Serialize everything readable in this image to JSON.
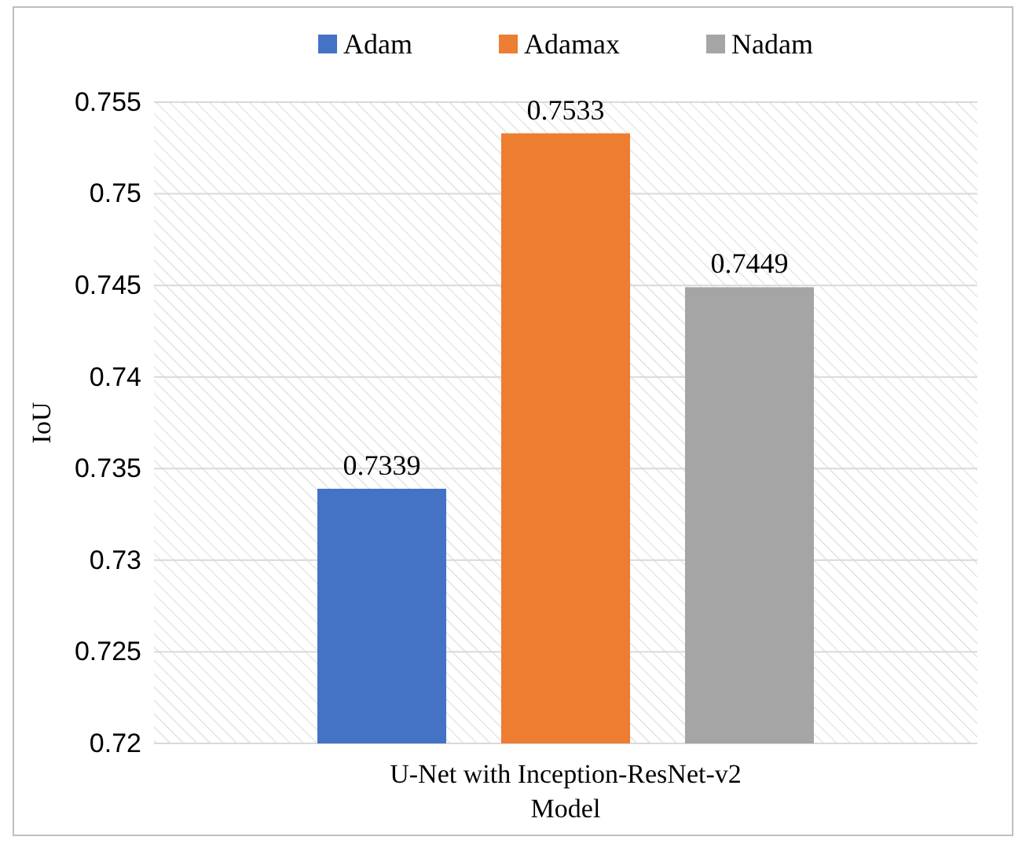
{
  "chart_data": {
    "type": "bar",
    "xlabel": "Model",
    "ylabel": "IoU",
    "categories": [
      "U-Net with Inception-ResNet-v2"
    ],
    "series": [
      {
        "name": "Adam",
        "color": "#4472c4",
        "values": [
          0.7339
        ]
      },
      {
        "name": "Adamax",
        "color": "#ed7d31",
        "values": [
          0.7533
        ]
      },
      {
        "name": "Nadam",
        "color": "#a5a5a5",
        "values": [
          0.7449
        ]
      }
    ],
    "ylim": [
      0.72,
      0.755
    ],
    "yticks": [
      0.72,
      0.725,
      0.73,
      0.735,
      0.74,
      0.745,
      0.75,
      0.755
    ],
    "grid": "y",
    "legend": "top",
    "data_labels": true
  }
}
